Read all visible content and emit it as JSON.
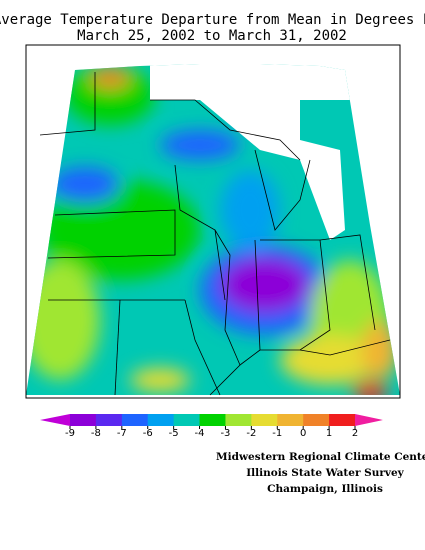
{
  "header": {
    "title": "Average Temperature Departure from Mean in Degrees F",
    "subtitle": "March 25, 2002 to March 31, 2002"
  },
  "legend": {
    "ticks": [
      -9,
      -8,
      -7,
      -6,
      -5,
      -4,
      -3,
      -2,
      -1,
      0,
      1,
      2
    ],
    "colors": [
      "#c000d8",
      "#8c00d8",
      "#5a28f0",
      "#1e64ff",
      "#00a0f0",
      "#00c8b4",
      "#00d200",
      "#a0e632",
      "#e6dc32",
      "#f0b432",
      "#f08228",
      "#f01e1e",
      "#f01ea0"
    ]
  },
  "credits": [
    "Midwestern Regional Climate Center",
    "Illinois State Water Survey",
    "Champaign, Illinois"
  ]
}
